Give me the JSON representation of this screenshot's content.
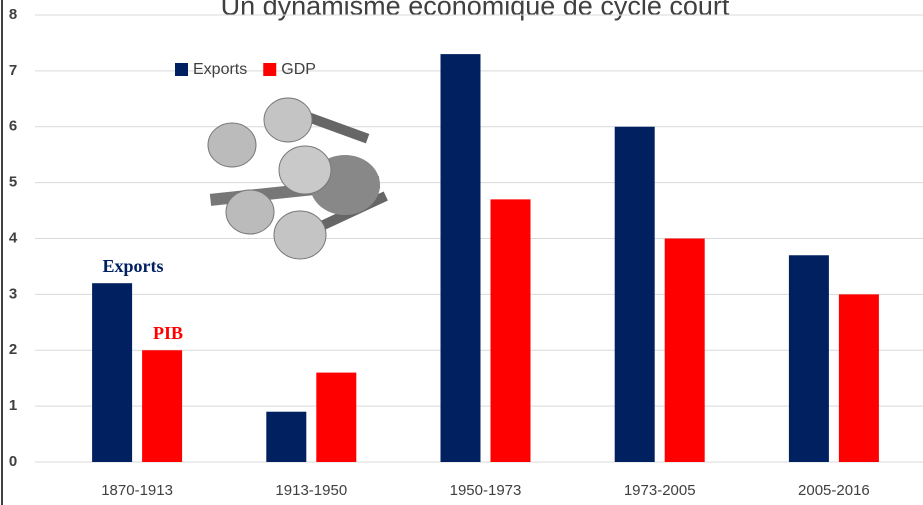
{
  "chart_data": {
    "type": "bar",
    "title": "Un dynamisme économique de cycle court",
    "categories": [
      "1870-1913",
      "1913-1950",
      "1950-1973",
      "1973-2005",
      "2005-2016"
    ],
    "series": [
      {
        "name": "Exports",
        "color": "#002060",
        "values": [
          3.2,
          0.9,
          7.3,
          6.0,
          3.7
        ]
      },
      {
        "name": "GDP",
        "color": "#ff0000",
        "values": [
          2.0,
          1.6,
          4.7,
          4.0,
          3.0
        ]
      }
    ],
    "ylim": [
      0,
      8
    ],
    "yticks": [
      0,
      1,
      2,
      3,
      4,
      5,
      6,
      7,
      8
    ],
    "grid": true,
    "annotations": [
      {
        "text": "Exports",
        "color": "#002060"
      },
      {
        "text": "PIB",
        "color": "#ff0000"
      }
    ]
  }
}
